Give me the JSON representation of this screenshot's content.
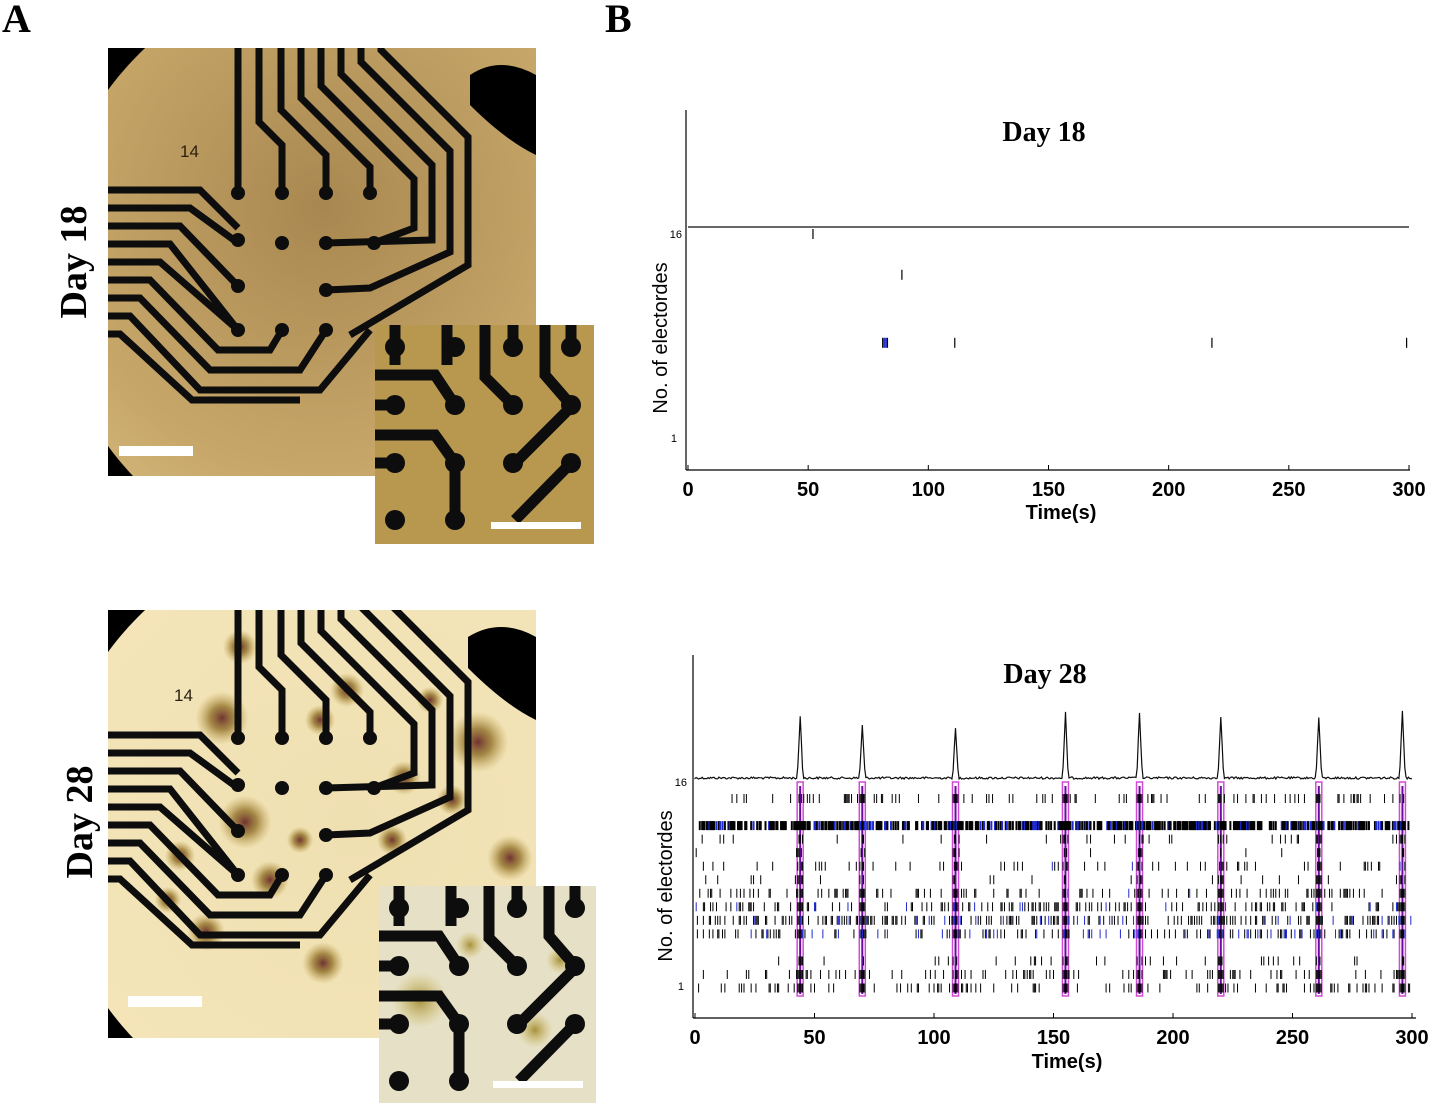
{
  "panel_labels": {
    "a": "A",
    "b": "B"
  },
  "micrographs": {
    "top": {
      "day_label": "Day 18",
      "electrode_number": "14"
    },
    "bottom": {
      "day_label": "Day 28",
      "electrode_number": "14"
    }
  },
  "colors": {
    "culture_day18": "#c9aa6b",
    "culture_day28": "#f3e2b0",
    "electrode_trace": "#0d0d0d",
    "spike_black": "#000000",
    "spike_blue": "#1f2ad0",
    "burst_marker": "#d24bd6",
    "burst_core": "#6a0aa0"
  },
  "chart_data": [
    {
      "type": "raster",
      "title": "Day 18",
      "xlabel": "Time(s)",
      "ylabel": "No. of electordes",
      "xlim": [
        0,
        300
      ],
      "x_ticks": [
        0,
        50,
        100,
        150,
        200,
        250,
        300
      ],
      "y_tick_labels": [
        "16",
        "1"
      ],
      "population_trace": {
        "baseline": true,
        "peaks": []
      },
      "spikes": [
        {
          "electrode": 16,
          "times": [
            52
          ]
        },
        {
          "electrode": 13,
          "times": [
            89
          ]
        },
        {
          "electrode": 8,
          "times": [
            81,
            81.5,
            82,
            82.5,
            83,
            111,
            218,
            299
          ]
        }
      ],
      "bursts": []
    },
    {
      "type": "raster",
      "title": "Day 28",
      "xlabel": "Time(s)",
      "ylabel": "No. of electordes",
      "xlim": [
        0,
        300
      ],
      "x_ticks": [
        0,
        50,
        100,
        150,
        200,
        250,
        300
      ],
      "y_tick_labels": [
        "16",
        "1"
      ],
      "population_trace": {
        "baseline": true,
        "peaks": [
          {
            "t": 44,
            "h": 1.0
          },
          {
            "t": 70,
            "h": 0.85
          },
          {
            "t": 109,
            "h": 0.8
          },
          {
            "t": 155,
            "h": 1.05
          },
          {
            "t": 186,
            "h": 1.05
          },
          {
            "t": 220,
            "h": 1.0
          },
          {
            "t": 261,
            "h": 0.98
          },
          {
            "t": 296,
            "h": 1.1
          }
        ]
      },
      "active_electrodes": [
        {
          "electrode": 15,
          "density": 0.45,
          "blue": 0.0
        },
        {
          "electrode": 13,
          "density": 2.6,
          "blue": 0.25
        },
        {
          "electrode": 12,
          "density": 0.25,
          "blue": 0.0
        },
        {
          "electrode": 11,
          "density": 0.05,
          "blue": 0.0
        },
        {
          "electrode": 10,
          "density": 0.3,
          "blue": 0.05
        },
        {
          "electrode": 9,
          "density": 0.12,
          "blue": 0.0
        },
        {
          "electrode": 8,
          "density": 0.55,
          "blue": 0.05
        },
        {
          "electrode": 7,
          "density": 0.9,
          "blue": 0.1
        },
        {
          "electrode": 6,
          "density": 1.2,
          "blue": 0.2
        },
        {
          "electrode": 5,
          "density": 1.0,
          "blue": 0.35
        },
        {
          "electrode": 3,
          "density": 0.15,
          "blue": 0.0
        },
        {
          "electrode": 2,
          "density": 0.5,
          "blue": 0.0
        },
        {
          "electrode": 1,
          "density": 0.6,
          "blue": 0.0
        }
      ],
      "bursts": [
        44,
        70,
        109,
        155,
        186,
        220,
        261,
        296
      ]
    }
  ]
}
